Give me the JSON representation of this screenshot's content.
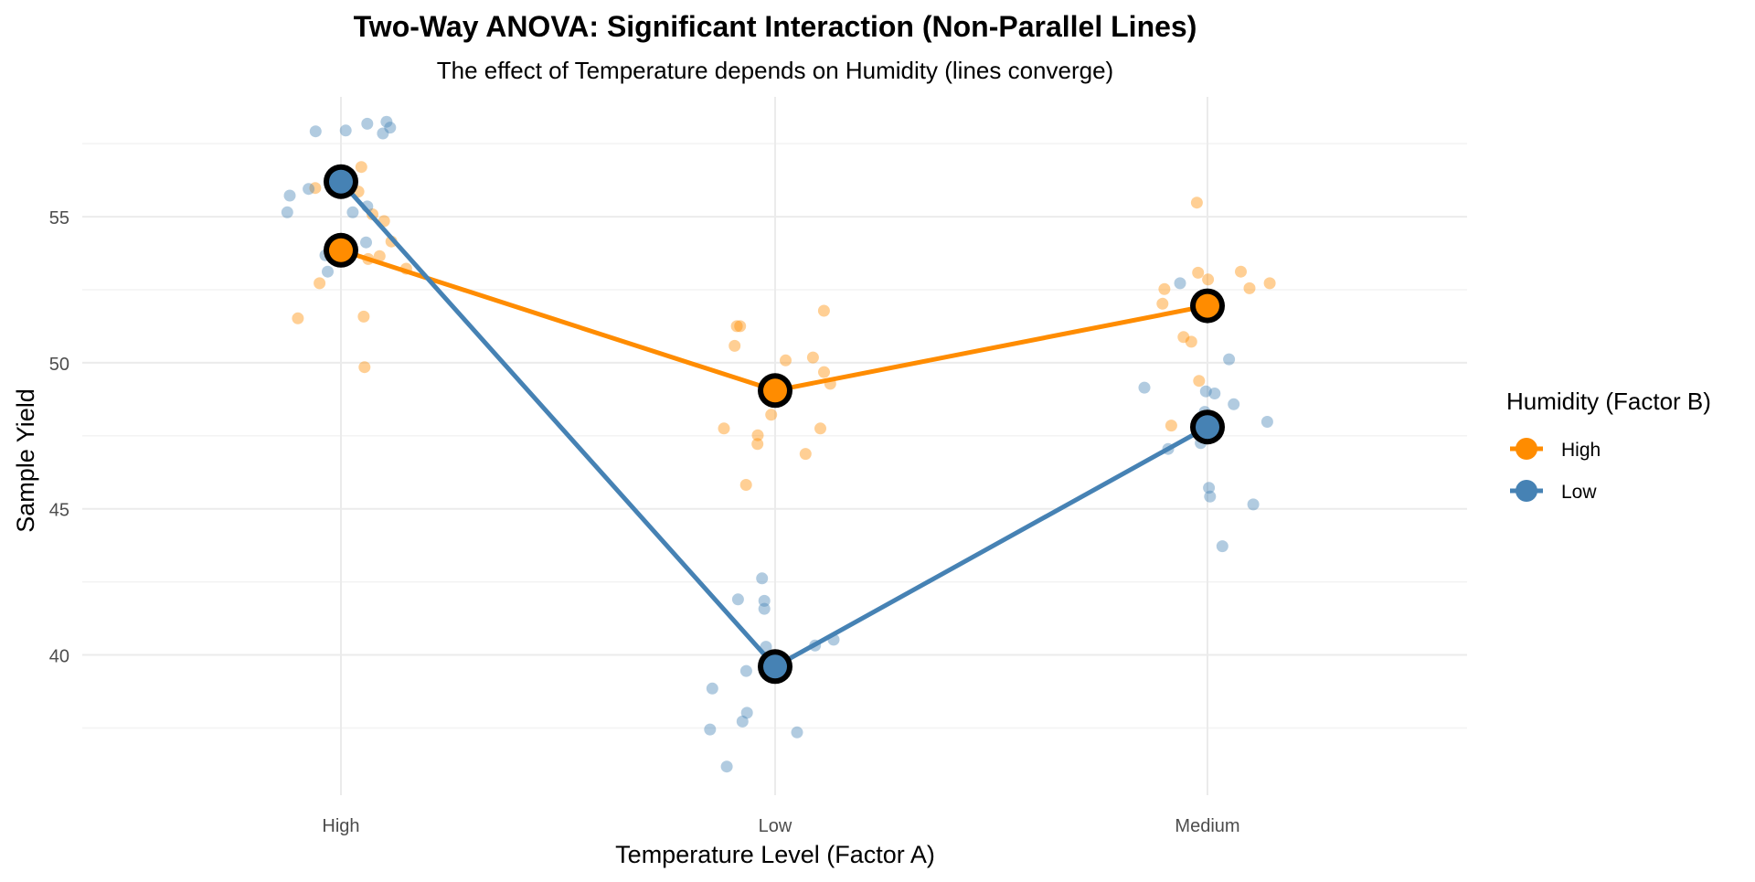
{
  "chart_data": {
    "type": "line",
    "title": "Two-Way ANOVA: Significant Interaction (Non-Parallel Lines)",
    "subtitle": "The effect of Temperature depends on Humidity (lines converge)",
    "xlabel": "Temperature Level (Factor A)",
    "ylabel": "Sample Yield",
    "categories": [
      "High",
      "Low",
      "Medium"
    ],
    "ylim": [
      35.2,
      59.1
    ],
    "yticks": [
      40,
      45,
      50,
      55
    ],
    "grid": true,
    "legend": {
      "title": "Humidity (Factor B)",
      "position": "right",
      "entries": [
        "High",
        "Low"
      ]
    },
    "colors": {
      "High": "#FF8C00",
      "Low": "#4682B4",
      "mean_outline": "#000000",
      "grid": "#EBEBEB"
    },
    "series": [
      {
        "name": "High",
        "means": [
          53.85,
          49.05,
          51.95
        ],
        "points": [
          [
            56.7,
            55.98,
            55.86,
            53.22,
            49.85,
            51.58,
            51.52,
            54.15,
            53.55,
            54.85,
            55.08,
            52.72,
            53.65
          ],
          [
            50.58,
            50.08,
            51.25,
            51.25,
            50.18,
            49.68,
            47.75,
            47.75,
            48.22,
            46.88,
            47.22,
            45.82,
            47.52,
            49.28,
            51.78
          ],
          [
            55.48,
            53.08,
            52.55,
            52.52,
            52.02,
            50.88,
            50.72,
            52.85,
            52.72,
            51.82,
            53.12,
            47.85,
            49.38
          ]
        ]
      },
      {
        "name": "Low",
        "means": [
          56.2,
          39.6,
          47.8
        ],
        "points": [
          [
            58.05,
            57.85,
            57.92,
            57.95,
            58.25,
            58.18,
            55.72,
            55.15,
            55.15,
            54.12,
            53.12,
            55.35,
            55.95,
            53.68
          ],
          [
            42.62,
            41.58,
            40.52,
            40.28,
            38.85,
            37.72,
            36.18,
            37.35,
            37.45,
            38.02,
            39.45,
            41.85,
            41.9,
            40.32
          ],
          [
            48.32,
            47.48,
            45.15,
            43.72,
            48.58,
            49.15,
            48.95,
            47.25,
            45.72,
            50.12,
            52.72,
            49.02,
            47.98,
            47.05,
            45.42
          ]
        ]
      }
    ]
  }
}
